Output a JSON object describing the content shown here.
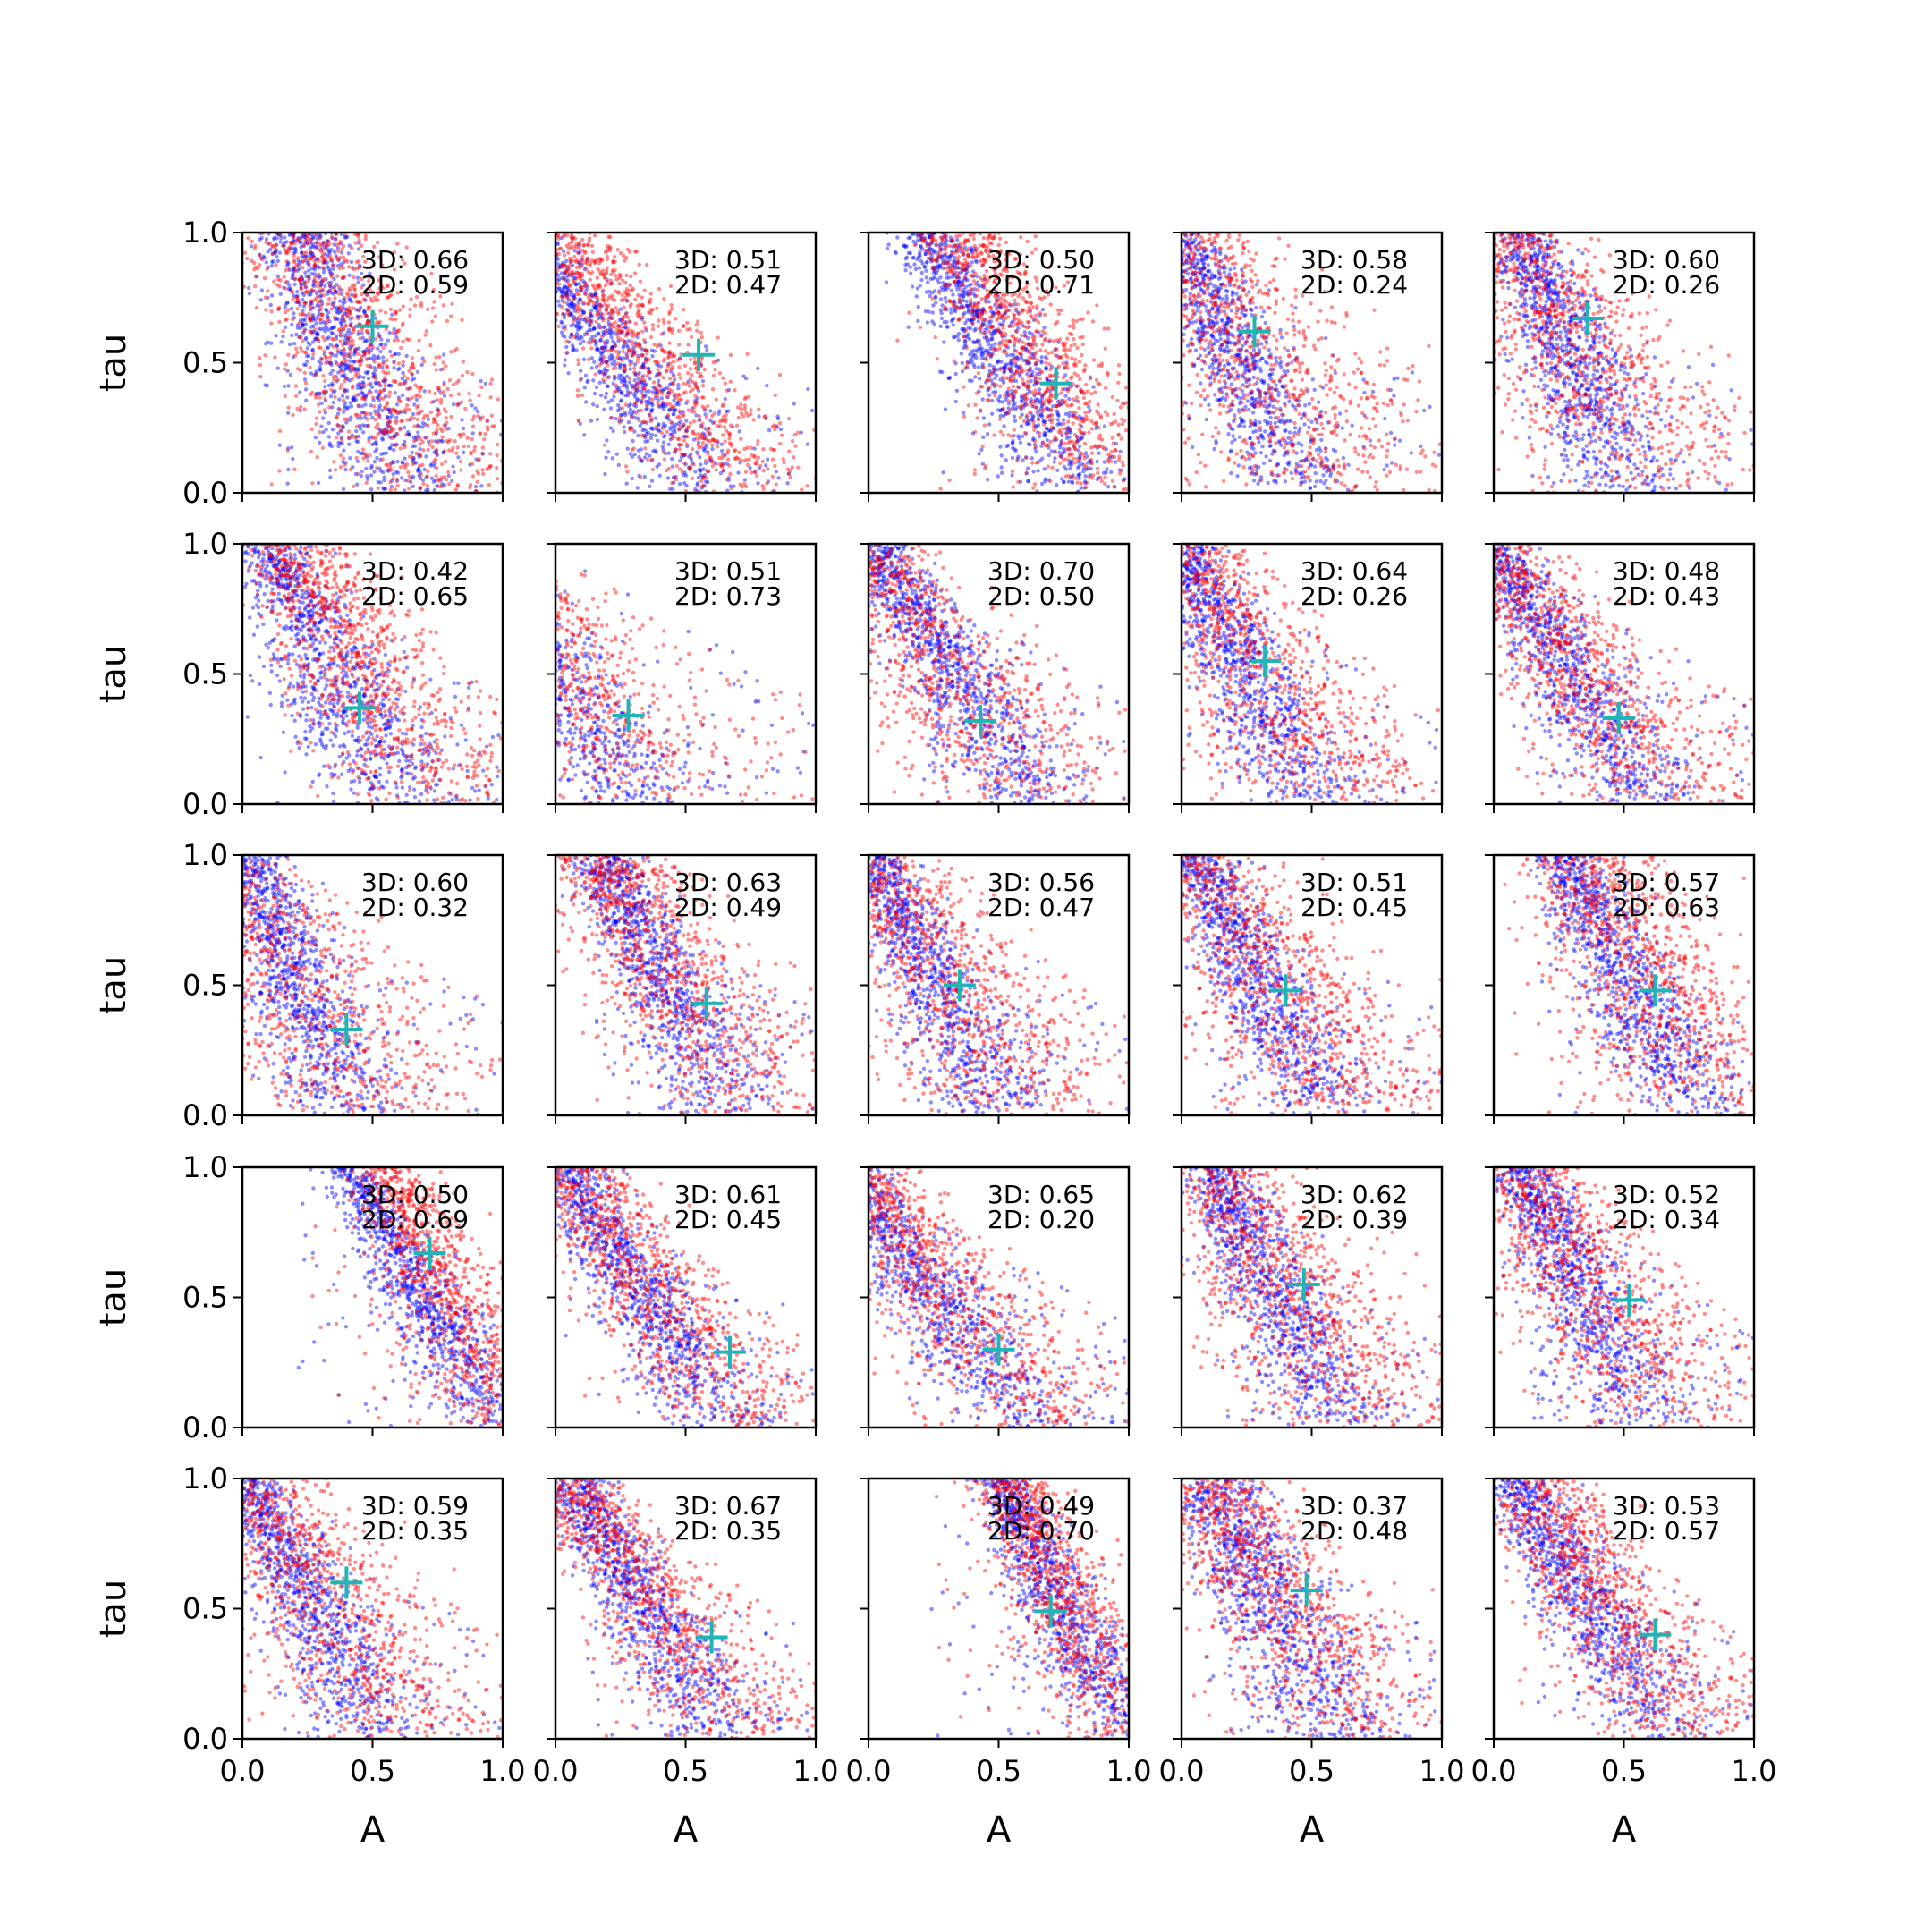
{
  "chart_data": {
    "type": "scatter",
    "layout": "5x5 grid of panels",
    "xlabel": "A",
    "ylabel": "tau",
    "xlim": [
      0,
      1
    ],
    "ylim": [
      0,
      1
    ],
    "xticks": [
      "0.0",
      "0.5",
      "1.0"
    ],
    "yticks": [
      "0.0",
      "0.5",
      "1.0"
    ],
    "colors": {
      "series_a": "#0000ff",
      "series_b": "#ff0000",
      "marker": "#1fb5b5"
    },
    "grid": false,
    "panels": [
      {
        "ann1": "3D: 0.66",
        "ann2": "2D: 0.59",
        "marker": [
          0.5,
          0.64
        ],
        "blue": {
          "ax": 0.45,
          "bx": 0.4,
          "cy": 0.4,
          "w": 0.12
        },
        "red": {
          "ax": 0.6,
          "bx": 0.5,
          "cy": 0.3,
          "w": 0.2
        }
      },
      {
        "ann1": "3D: 0.51",
        "ann2": "2D: 0.47",
        "marker": [
          0.55,
          0.53
        ],
        "blue": {
          "ax": 0.45,
          "bx": 0.7,
          "cy": 0.2,
          "w": 0.1
        },
        "red": {
          "ax": 0.6,
          "bx": 0.7,
          "cy": 0.18,
          "w": 0.14
        }
      },
      {
        "ann1": "3D: 0.50",
        "ann2": "2D: 0.71",
        "marker": [
          0.72,
          0.42
        ],
        "blue": {
          "ax": 0.7,
          "bx": 0.6,
          "cy": 0.2,
          "w": 0.1
        },
        "red": {
          "ax": 0.8,
          "bx": 0.6,
          "cy": 0.25,
          "w": 0.14
        }
      },
      {
        "ann1": "3D: 0.58",
        "ann2": "2D: 0.24",
        "marker": [
          0.28,
          0.62
        ],
        "blue": {
          "ax": 0.3,
          "bx": 0.5,
          "cy": 0.35,
          "w": 0.1
        },
        "red": {
          "ax": 0.4,
          "bx": 0.6,
          "cy": 0.3,
          "w": 0.22
        }
      },
      {
        "ann1": "3D: 0.60",
        "ann2": "2D: 0.26",
        "marker": [
          0.36,
          0.67
        ],
        "blue": {
          "ax": 0.35,
          "bx": 0.4,
          "cy": 0.4,
          "w": 0.1
        },
        "red": {
          "ax": 0.45,
          "bx": 0.6,
          "cy": 0.3,
          "w": 0.2
        }
      },
      {
        "ann1": "3D: 0.42",
        "ann2": "2D: 0.65",
        "marker": [
          0.45,
          0.37
        ],
        "blue": {
          "ax": 0.45,
          "bx": 0.5,
          "cy": 0.3,
          "w": 0.12
        },
        "red": {
          "ax": 0.6,
          "bx": 0.6,
          "cy": 0.28,
          "w": 0.16
        }
      },
      {
        "ann1": "3D: 0.51",
        "ann2": "2D: 0.73",
        "marker": [
          0.28,
          0.34
        ],
        "blue": {
          "ax": 0.25,
          "bx": 0.7,
          "cy": 0.1,
          "w": 0.12
        },
        "red": {
          "ax": 0.3,
          "bx": 0.7,
          "cy": 0.12,
          "w": 0.18
        }
      },
      {
        "ann1": "3D: 0.70",
        "ann2": "2D: 0.50",
        "marker": [
          0.43,
          0.32
        ],
        "blue": {
          "ax": 0.5,
          "bx": 0.6,
          "cy": 0.2,
          "w": 0.1
        },
        "red": {
          "ax": 0.5,
          "bx": 0.7,
          "cy": 0.2,
          "w": 0.2
        }
      },
      {
        "ann1": "3D: 0.64",
        "ann2": "2D: 0.26",
        "marker": [
          0.32,
          0.55
        ],
        "blue": {
          "ax": 0.35,
          "bx": 0.5,
          "cy": 0.3,
          "w": 0.1
        },
        "red": {
          "ax": 0.45,
          "bx": 0.6,
          "cy": 0.25,
          "w": 0.2
        }
      },
      {
        "ann1": "3D: 0.48",
        "ann2": "2D: 0.43",
        "marker": [
          0.48,
          0.33
        ],
        "blue": {
          "ax": 0.45,
          "bx": 0.6,
          "cy": 0.25,
          "w": 0.1
        },
        "red": {
          "ax": 0.55,
          "bx": 0.7,
          "cy": 0.2,
          "w": 0.16
        }
      },
      {
        "ann1": "3D: 0.60",
        "ann2": "2D: 0.32",
        "marker": [
          0.4,
          0.33
        ],
        "blue": {
          "ax": 0.25,
          "bx": 0.4,
          "cy": 0.4,
          "w": 0.1
        },
        "red": {
          "ax": 0.3,
          "bx": 0.6,
          "cy": 0.3,
          "w": 0.22
        }
      },
      {
        "ann1": "3D: 0.63",
        "ann2": "2D: 0.49",
        "marker": [
          0.58,
          0.43
        ],
        "blue": {
          "ax": 0.5,
          "bx": 0.5,
          "cy": 0.35,
          "w": 0.1
        },
        "red": {
          "ax": 0.6,
          "bx": 0.6,
          "cy": 0.3,
          "w": 0.18
        }
      },
      {
        "ann1": "3D: 0.56",
        "ann2": "2D: 0.47",
        "marker": [
          0.35,
          0.5
        ],
        "blue": {
          "ax": 0.35,
          "bx": 0.5,
          "cy": 0.3,
          "w": 0.1
        },
        "red": {
          "ax": 0.45,
          "bx": 0.6,
          "cy": 0.25,
          "w": 0.2
        }
      },
      {
        "ann1": "3D: 0.51",
        "ann2": "2D: 0.45",
        "marker": [
          0.4,
          0.48
        ],
        "blue": {
          "ax": 0.4,
          "bx": 0.5,
          "cy": 0.3,
          "w": 0.1
        },
        "red": {
          "ax": 0.5,
          "bx": 0.6,
          "cy": 0.25,
          "w": 0.2
        }
      },
      {
        "ann1": "3D: 0.57",
        "ann2": "2D: 0.63",
        "marker": [
          0.62,
          0.48
        ],
        "blue": {
          "ax": 0.6,
          "bx": 0.5,
          "cy": 0.35,
          "w": 0.1
        },
        "red": {
          "ax": 0.7,
          "bx": 0.5,
          "cy": 0.3,
          "w": 0.18
        }
      },
      {
        "ann1": "3D: 0.50",
        "ann2": "2D: 0.69",
        "marker": [
          0.72,
          0.67
        ],
        "blue": {
          "ax": 0.7,
          "bx": 0.6,
          "cy": 0.5,
          "w": 0.08
        },
        "red": {
          "ax": 0.85,
          "bx": 0.5,
          "cy": 0.4,
          "w": 0.12
        }
      },
      {
        "ann1": "3D: 0.61",
        "ann2": "2D: 0.45",
        "marker": [
          0.67,
          0.29
        ],
        "blue": {
          "ax": 0.5,
          "bx": 0.6,
          "cy": 0.25,
          "w": 0.1
        },
        "red": {
          "ax": 0.6,
          "bx": 0.7,
          "cy": 0.2,
          "w": 0.16
        }
      },
      {
        "ann1": "3D: 0.65",
        "ann2": "2D: 0.20",
        "marker": [
          0.5,
          0.3
        ],
        "blue": {
          "ax": 0.5,
          "bx": 0.7,
          "cy": 0.15,
          "w": 0.1
        },
        "red": {
          "ax": 0.55,
          "bx": 0.7,
          "cy": 0.15,
          "w": 0.16
        }
      },
      {
        "ann1": "3D: 0.62",
        "ann2": "2D: 0.39",
        "marker": [
          0.47,
          0.55
        ],
        "blue": {
          "ax": 0.45,
          "bx": 0.5,
          "cy": 0.35,
          "w": 0.1
        },
        "red": {
          "ax": 0.55,
          "bx": 0.6,
          "cy": 0.3,
          "w": 0.2
        }
      },
      {
        "ann1": "3D: 0.52",
        "ann2": "2D: 0.34",
        "marker": [
          0.52,
          0.49
        ],
        "blue": {
          "ax": 0.45,
          "bx": 0.5,
          "cy": 0.3,
          "w": 0.1
        },
        "red": {
          "ax": 0.55,
          "bx": 0.6,
          "cy": 0.25,
          "w": 0.18
        }
      },
      {
        "ann1": "3D: 0.59",
        "ann2": "2D: 0.35",
        "marker": [
          0.4,
          0.6
        ],
        "blue": {
          "ax": 0.35,
          "bx": 0.5,
          "cy": 0.35,
          "w": 0.1
        },
        "red": {
          "ax": 0.45,
          "bx": 0.6,
          "cy": 0.3,
          "w": 0.2
        }
      },
      {
        "ann1": "3D: 0.67",
        "ann2": "2D: 0.35",
        "marker": [
          0.6,
          0.39
        ],
        "blue": {
          "ax": 0.5,
          "bx": 0.6,
          "cy": 0.25,
          "w": 0.1
        },
        "red": {
          "ax": 0.6,
          "bx": 0.7,
          "cy": 0.2,
          "w": 0.14
        }
      },
      {
        "ann1": "3D: 0.49",
        "ann2": "2D: 0.70",
        "marker": [
          0.7,
          0.49
        ],
        "blue": {
          "ax": 0.8,
          "bx": 0.5,
          "cy": 0.4,
          "w": 0.08
        },
        "red": {
          "ax": 0.85,
          "bx": 0.5,
          "cy": 0.35,
          "w": 0.12
        }
      },
      {
        "ann1": "3D: 0.37",
        "ann2": "2D: 0.48",
        "marker": [
          0.48,
          0.57
        ],
        "blue": {
          "ax": 0.45,
          "bx": 0.5,
          "cy": 0.3,
          "w": 0.12
        },
        "red": {
          "ax": 0.55,
          "bx": 0.6,
          "cy": 0.25,
          "w": 0.18
        }
      },
      {
        "ann1": "3D: 0.53",
        "ann2": "2D: 0.57",
        "marker": [
          0.62,
          0.4
        ],
        "blue": {
          "ax": 0.5,
          "bx": 0.6,
          "cy": 0.3,
          "w": 0.1
        },
        "red": {
          "ax": 0.6,
          "bx": 0.6,
          "cy": 0.25,
          "w": 0.16
        }
      }
    ]
  }
}
